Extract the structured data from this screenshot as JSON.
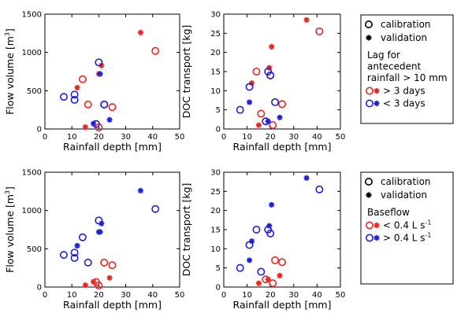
{
  "colors": {
    "red": "#e8271f",
    "blue": "#1f1fd6",
    "axis": "#000000"
  },
  "chart_data": [
    {
      "type": "scatter",
      "xlabel": "Rainfall depth [mm]",
      "ylabel": "Flow volume [m3]",
      "ylabel_base": "Flow volume [m",
      "ylabel_sup": "3",
      "ylabel_end": "]",
      "xlim": [
        0,
        50
      ],
      "ylim": [
        0,
        1500
      ],
      "xticks": [
        0,
        10,
        20,
        30,
        40,
        50
      ],
      "yticks": [
        0,
        500,
        1000,
        1500
      ],
      "series": [
        {
          "marker": "circle",
          "color": "red",
          "points": [
            [
              14,
              650
            ],
            [
              16,
              320
            ],
            [
              22,
              320
            ],
            [
              25,
              285
            ],
            [
              41,
              1020
            ],
            [
              20,
              20
            ]
          ]
        },
        {
          "marker": "star",
          "color": "red",
          "points": [
            [
              12,
              540
            ],
            [
              15,
              25
            ],
            [
              20,
              720
            ],
            [
              21,
              830
            ],
            [
              35.5,
              1260
            ]
          ]
        },
        {
          "marker": "circle",
          "color": "blue",
          "points": [
            [
              7,
              420
            ],
            [
              11,
              450
            ],
            [
              11,
              380
            ],
            [
              19,
              65
            ],
            [
              20,
              870
            ],
            [
              22,
              320
            ]
          ]
        },
        {
          "marker": "star",
          "color": "blue",
          "points": [
            [
              20.5,
              720
            ],
            [
              24,
              120
            ],
            [
              18,
              70
            ]
          ]
        }
      ]
    },
    {
      "type": "scatter",
      "xlabel": "Rainfall depth [mm]",
      "ylabel": "DOC transport [kg]",
      "xlim": [
        0,
        50
      ],
      "ylim": [
        0,
        30
      ],
      "xticks": [
        0,
        10,
        20,
        30,
        40,
        50
      ],
      "yticks": [
        0,
        5,
        10,
        15,
        20,
        25,
        30
      ],
      "series": [
        {
          "marker": "circle",
          "color": "red",
          "points": [
            [
              14,
              15
            ],
            [
              16,
              4
            ],
            [
              20,
              14
            ],
            [
              21,
              1
            ],
            [
              25,
              6.5
            ],
            [
              41,
              25.5
            ]
          ]
        },
        {
          "marker": "star",
          "color": "red",
          "points": [
            [
              12,
              12
            ],
            [
              15,
              1
            ],
            [
              19.5,
              16
            ],
            [
              20.5,
              21.5
            ],
            [
              35.5,
              28.5
            ]
          ]
        },
        {
          "marker": "circle",
          "color": "blue",
          "points": [
            [
              7,
              5
            ],
            [
              11,
              11
            ],
            [
              19,
              15
            ],
            [
              20,
              14
            ],
            [
              22,
              7
            ],
            [
              18,
              2
            ]
          ]
        },
        {
          "marker": "star",
          "color": "blue",
          "points": [
            [
              11,
              7
            ],
            [
              19,
              2
            ],
            [
              24,
              3
            ]
          ]
        }
      ]
    },
    {
      "type": "scatter",
      "xlabel": "Rainfall depth [mm]",
      "ylabel": "Flow volume [m3]",
      "ylabel_base": "Flow volume [m",
      "ylabel_sup": "3",
      "ylabel_end": "]",
      "xlim": [
        0,
        50
      ],
      "ylim": [
        0,
        1500
      ],
      "xticks": [
        0,
        10,
        20,
        30,
        40,
        50
      ],
      "yticks": [
        0,
        500,
        1000,
        1500
      ],
      "series": [
        {
          "marker": "circle",
          "color": "blue",
          "points": [
            [
              7,
              420
            ],
            [
              11,
              450
            ],
            [
              11,
              380
            ],
            [
              14,
              650
            ],
            [
              16,
              320
            ],
            [
              20,
              870
            ],
            [
              41,
              1020
            ]
          ]
        },
        {
          "marker": "star",
          "color": "blue",
          "points": [
            [
              12,
              540
            ],
            [
              20,
              720
            ],
            [
              21,
              830
            ],
            [
              20.5,
              720
            ],
            [
              35.5,
              1260
            ]
          ]
        },
        {
          "marker": "circle",
          "color": "red",
          "points": [
            [
              19,
              65
            ],
            [
              20,
              20
            ],
            [
              22,
              320
            ],
            [
              25,
              285
            ]
          ]
        },
        {
          "marker": "star",
          "color": "red",
          "points": [
            [
              15,
              25
            ],
            [
              18,
              70
            ],
            [
              24,
              120
            ]
          ]
        }
      ]
    },
    {
      "type": "scatter",
      "xlabel": "Rainfall depth [mm]",
      "ylabel": "DOC transport [kg]",
      "xlim": [
        0,
        50
      ],
      "ylim": [
        0,
        30
      ],
      "xticks": [
        0,
        10,
        20,
        30,
        40,
        50
      ],
      "yticks": [
        0,
        5,
        10,
        15,
        20,
        25,
        30
      ],
      "series": [
        {
          "marker": "circle",
          "color": "blue",
          "points": [
            [
              7,
              5
            ],
            [
              11,
              11
            ],
            [
              14,
              15
            ],
            [
              16,
              4
            ],
            [
              19,
              15
            ],
            [
              20,
              14
            ],
            [
              41,
              25.5
            ]
          ]
        },
        {
          "marker": "star",
          "color": "blue",
          "points": [
            [
              11,
              7
            ],
            [
              12,
              12
            ],
            [
              19.5,
              16
            ],
            [
              20.5,
              21.5
            ],
            [
              35.5,
              28.5
            ]
          ]
        },
        {
          "marker": "circle",
          "color": "red",
          "points": [
            [
              18,
              2
            ],
            [
              21,
              1
            ],
            [
              22,
              7
            ],
            [
              25,
              6.5
            ]
          ]
        },
        {
          "marker": "star",
          "color": "red",
          "points": [
            [
              15,
              1
            ],
            [
              19,
              2
            ],
            [
              24,
              3
            ]
          ]
        }
      ]
    }
  ],
  "legends": [
    {
      "cal_label": "calibration",
      "val_label": "validation",
      "heading_lines": [
        "Lag for",
        "antecedent",
        "rainfall > 10 mm"
      ],
      "items": [
        {
          "color": "red",
          "label": "> 3 days"
        },
        {
          "color": "blue",
          "label": "< 3 days"
        }
      ]
    },
    {
      "cal_label": "calibration",
      "val_label": "validation",
      "heading_lines": [
        "Baseflow"
      ],
      "items": [
        {
          "color": "red",
          "label_base": "< 0.4 L s",
          "label_sup": "-1"
        },
        {
          "color": "blue",
          "label_base": "> 0.4 L s",
          "label_sup": "-1"
        }
      ]
    }
  ]
}
